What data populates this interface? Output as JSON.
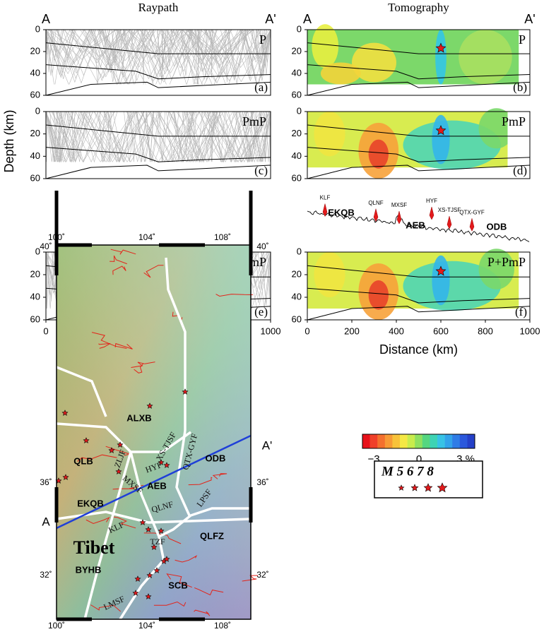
{
  "columns": {
    "raypath": "Raypath",
    "tomography": "Tomography"
  },
  "section_ends": [
    "A",
    "A'"
  ],
  "depth_axis": {
    "label": "Depth (km)",
    "ticks": [
      0,
      20,
      40,
      60
    ]
  },
  "distance_axis": {
    "label": "Distance (km)",
    "ticks": [
      0,
      200,
      400,
      600,
      800,
      1000
    ]
  },
  "panels": [
    {
      "phase": "P",
      "letter": "(a)"
    },
    {
      "phase": "P",
      "letter": "(b)"
    },
    {
      "phase": "PmP",
      "letter": "(c)"
    },
    {
      "phase": "PmP",
      "letter": "(d)"
    },
    {
      "phase": "P+PmP",
      "letter": "(e)"
    },
    {
      "phase": "P+PmP",
      "letter": "(f)"
    }
  ],
  "topography": {
    "faults": [
      "KLF",
      "QLNF",
      "MXSF",
      "HYF",
      "XS-TJSF",
      "QTX-GYF"
    ],
    "blocks": [
      "EKQB",
      "AEB",
      "ODB"
    ]
  },
  "map": {
    "lon_labels": [
      "100˚",
      "104˚",
      "108˚"
    ],
    "lat_labels": [
      "40˚",
      "36˚",
      "32˚"
    ],
    "blocks": [
      "ALXB",
      "QLB",
      "ODB",
      "AEB",
      "EKQB",
      "QLFZ",
      "BYHB",
      "SCB"
    ],
    "region": "Tibet",
    "faults": [
      "XS-TJSF",
      "QTX-GYF",
      "ZLJF",
      "HYF",
      "MXSF",
      "LPSF",
      "QLNF",
      "KLF",
      "TZF",
      "LMSF"
    ],
    "profile_ends": [
      "A",
      "A'"
    ]
  },
  "colorbar": {
    "ticks": [
      "−3",
      "0",
      "3 %"
    ]
  },
  "legend": {
    "title": "M 5 6 7 8"
  }
}
